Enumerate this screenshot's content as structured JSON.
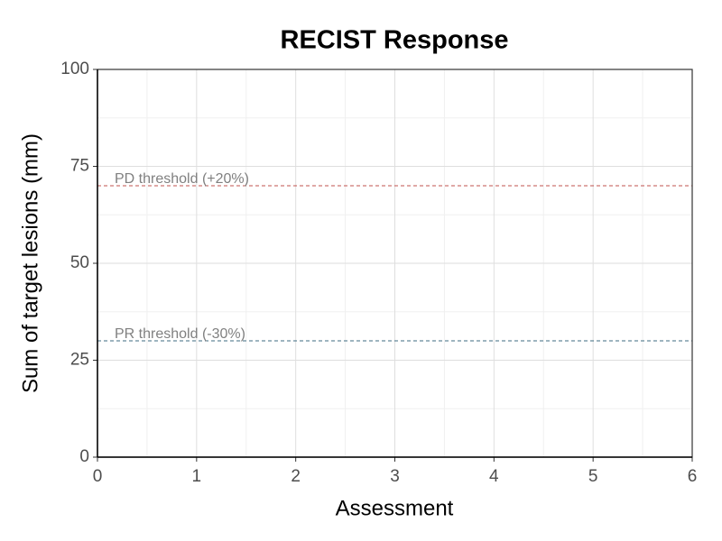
{
  "chart_data": {
    "type": "line",
    "title": "RECIST Response",
    "x_label": "Assessment",
    "y_label": "Sum of target lesions (mm)",
    "series": [],
    "xlim": [
      0,
      6
    ],
    "xticks": [
      0,
      1,
      2,
      3,
      4,
      5,
      6
    ],
    "ylim": [
      0,
      100
    ],
    "yticks": [
      0,
      25,
      50,
      75,
      100
    ],
    "grid": true,
    "minor_grid": true,
    "reference_lines": [
      {
        "value": 70,
        "label": "PD threshold (+20%)",
        "color": "#c0504d"
      },
      {
        "value": 30,
        "label": "PR threshold (-30%)",
        "color": "#3d6b80"
      }
    ]
  }
}
